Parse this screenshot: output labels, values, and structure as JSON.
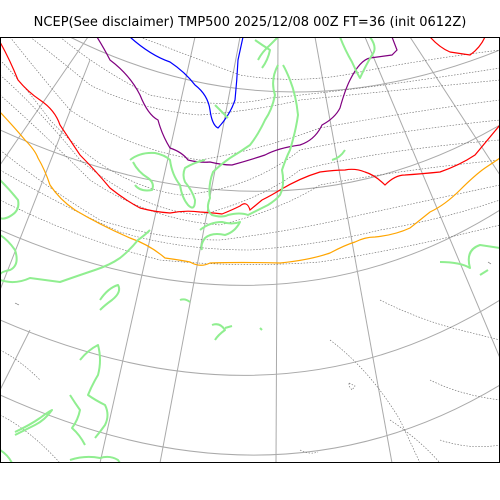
{
  "title": "NCEP(See disclaimer) TMP500 2025/12/08 00Z FT=36 (init 0612Z)",
  "colors": {
    "frame": "#000000",
    "graticule": "#aaaaaa",
    "coastline": "#90ee90",
    "isotherm_minor": "#666666",
    "purple": "#800080",
    "blue": "#0000ff",
    "red": "#ff0000",
    "orange": "#ffa500"
  }
}
